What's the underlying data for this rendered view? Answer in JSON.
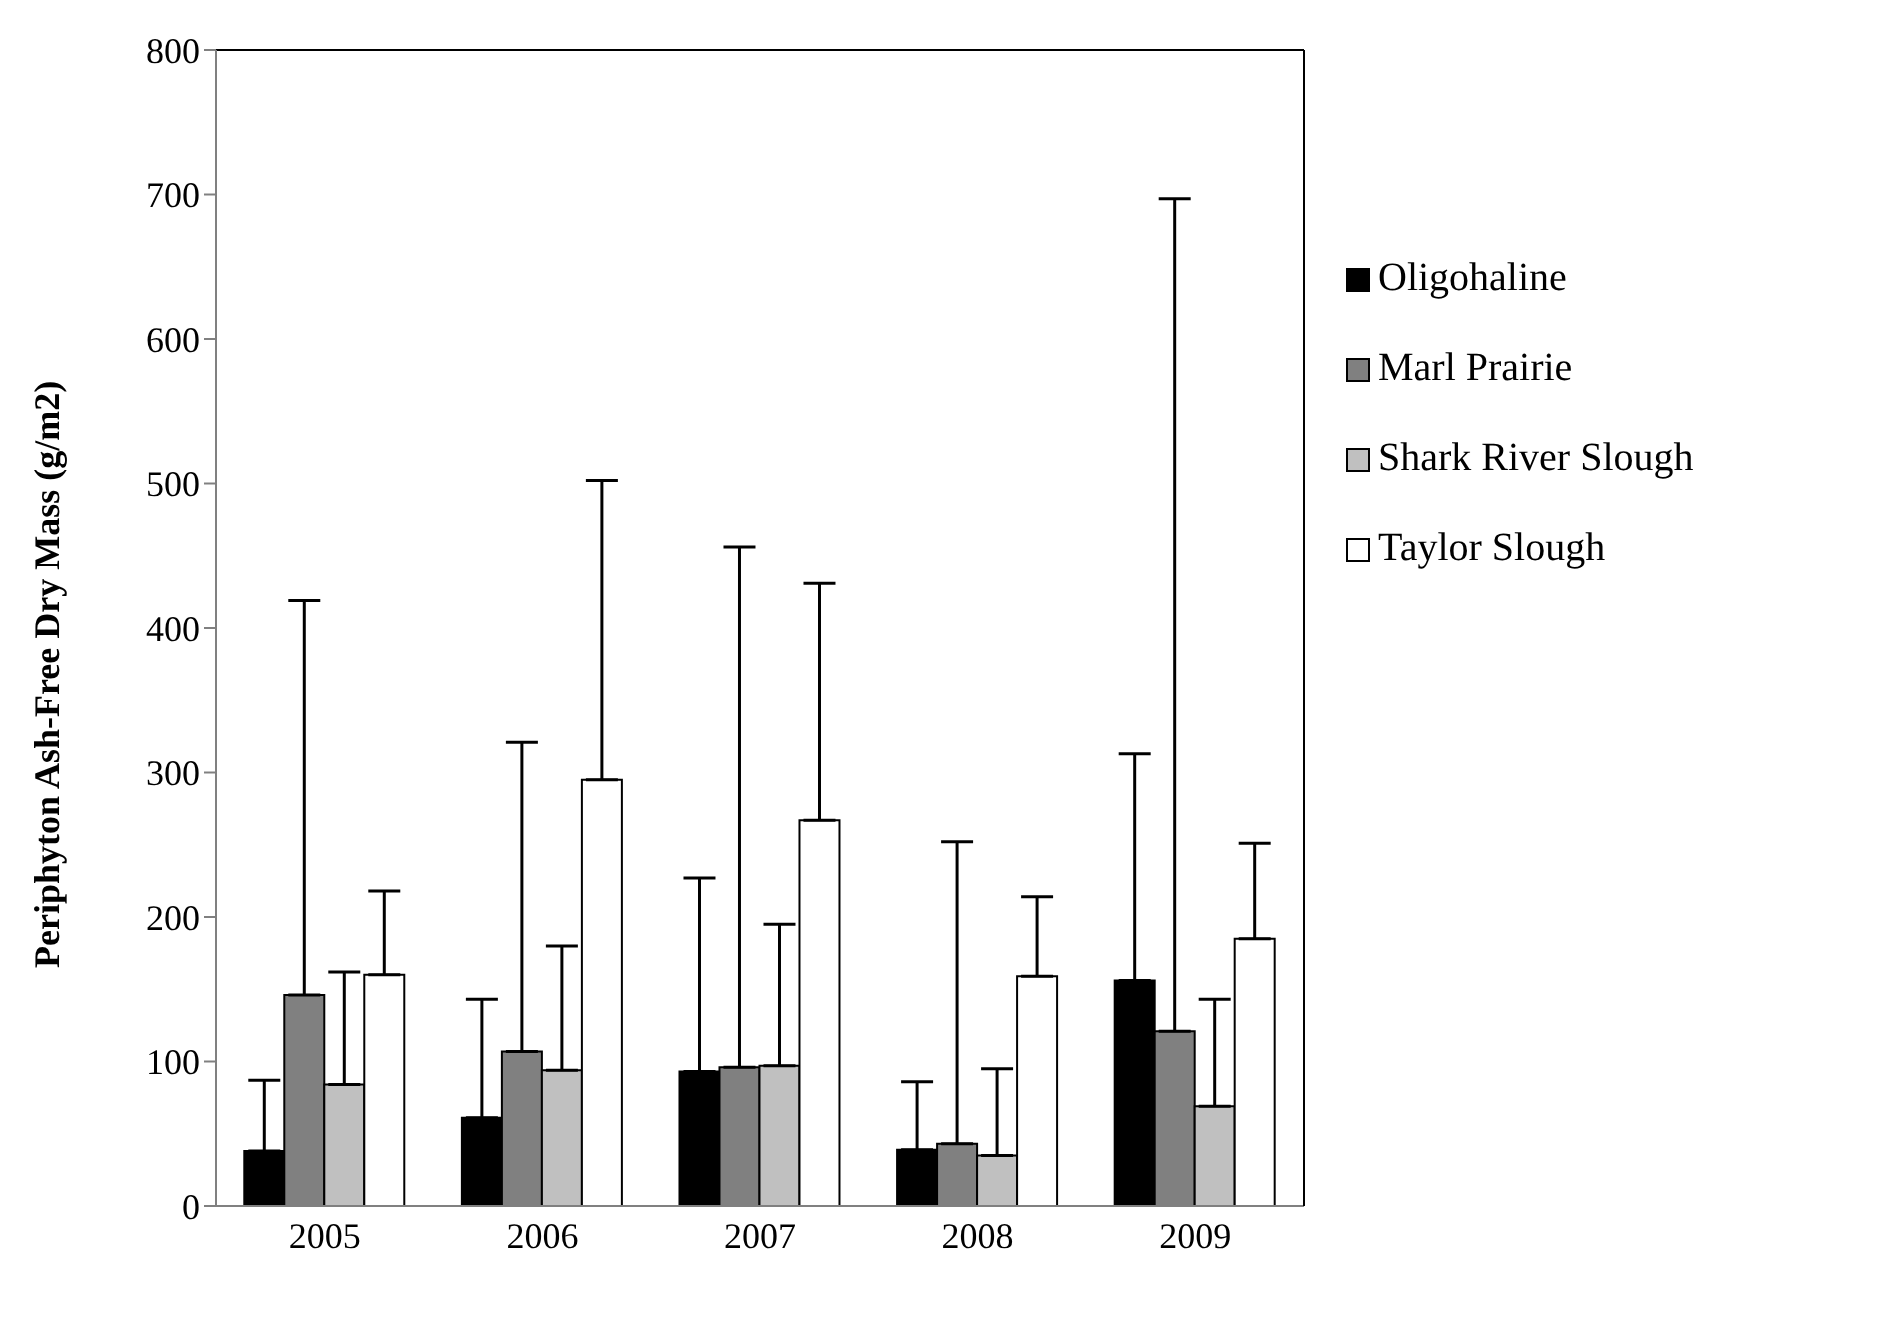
{
  "chart_data": {
    "type": "bar",
    "ylabel": "Periphyton Ash-Free Dry Mass (g/m2)",
    "categories": [
      "2005",
      "2006",
      "2007",
      "2008",
      "2009"
    ],
    "series": [
      {
        "name": "Oligohaline",
        "color": "#000000",
        "values": [
          38,
          61,
          93,
          39,
          156
        ],
        "errors": [
          [
            38,
            87
          ],
          [
            61,
            143
          ],
          [
            93,
            227
          ],
          [
            39,
            86
          ],
          [
            156,
            313
          ]
        ]
      },
      {
        "name": "Marl Prairie",
        "color": "#808080",
        "values": [
          146,
          107,
          96,
          43,
          121
        ],
        "errors": [
          [
            146,
            419
          ],
          [
            107,
            321
          ],
          [
            96,
            456
          ],
          [
            43,
            252
          ],
          [
            121,
            697
          ]
        ]
      },
      {
        "name": "Shark River Slough",
        "color": "#c0c0c0",
        "values": [
          84,
          94,
          97,
          35,
          69
        ],
        "errors": [
          [
            84,
            162
          ],
          [
            94,
            180
          ],
          [
            97,
            195
          ],
          [
            35,
            95
          ],
          [
            69,
            143
          ]
        ]
      },
      {
        "name": "Taylor Slough",
        "color": "#ffffff",
        "values": [
          160,
          295,
          267,
          159,
          185
        ],
        "errors": [
          [
            160,
            218
          ],
          [
            295,
            502
          ],
          [
            267,
            431
          ],
          [
            159,
            214
          ],
          [
            185,
            251
          ]
        ]
      }
    ],
    "ylim": [
      0,
      800
    ],
    "yticks": [
      0,
      100,
      200,
      300,
      400,
      500,
      600,
      700,
      800
    ],
    "grid": false,
    "legend": "right"
  }
}
